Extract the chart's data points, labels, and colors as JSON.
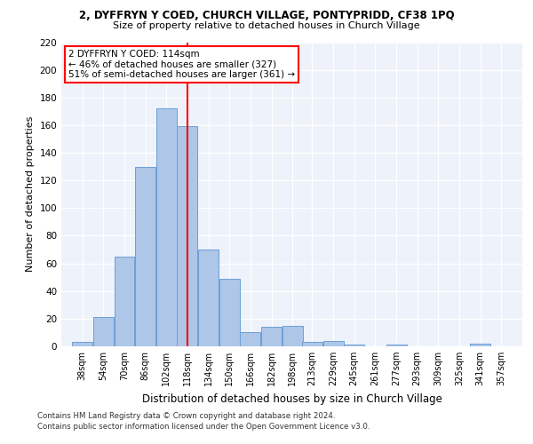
{
  "title1": "2, DYFFRYN Y COED, CHURCH VILLAGE, PONTYPRIDD, CF38 1PQ",
  "title2": "Size of property relative to detached houses in Church Village",
  "xlabel": "Distribution of detached houses by size in Church Village",
  "ylabel": "Number of detached properties",
  "categories": [
    "38sqm",
    "54sqm",
    "70sqm",
    "86sqm",
    "102sqm",
    "118sqm",
    "134sqm",
    "150sqm",
    "166sqm",
    "182sqm",
    "198sqm",
    "213sqm",
    "229sqm",
    "245sqm",
    "261sqm",
    "277sqm",
    "293sqm",
    "309sqm",
    "325sqm",
    "341sqm",
    "357sqm"
  ],
  "bar_heights": [
    3,
    21,
    65,
    130,
    172,
    159,
    70,
    49,
    10,
    14,
    15,
    3,
    4,
    1,
    0,
    1,
    0,
    0,
    0,
    2,
    0
  ],
  "bar_color": "#aec6e8",
  "bar_edge_color": "#6a9fd8",
  "vline_color": "red",
  "annotation_text": "2 DYFFRYN Y COED: 114sqm\n← 46% of detached houses are smaller (327)\n51% of semi-detached houses are larger (361) →",
  "footer1": "Contains HM Land Registry data © Crown copyright and database right 2024.",
  "footer2": "Contains public sector information licensed under the Open Government Licence v3.0.",
  "ylim": [
    0,
    220
  ],
  "yticks": [
    0,
    20,
    40,
    60,
    80,
    100,
    120,
    140,
    160,
    180,
    200,
    220
  ],
  "bin_width": 16,
  "background_color": "#eef2fa"
}
